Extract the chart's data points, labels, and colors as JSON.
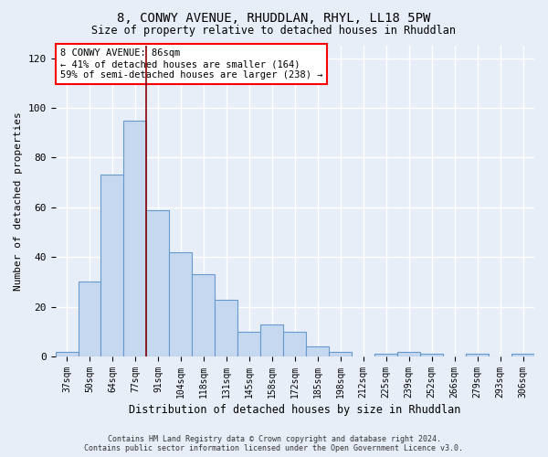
{
  "title1": "8, CONWY AVENUE, RHUDDLAN, RHYL, LL18 5PW",
  "title2": "Size of property relative to detached houses in Rhuddlan",
  "xlabel": "Distribution of detached houses by size in Rhuddlan",
  "ylabel": "Number of detached properties",
  "categories": [
    "37sqm",
    "50sqm",
    "64sqm",
    "77sqm",
    "91sqm",
    "104sqm",
    "118sqm",
    "131sqm",
    "145sqm",
    "158sqm",
    "172sqm",
    "185sqm",
    "198sqm",
    "212sqm",
    "225sqm",
    "239sqm",
    "252sqm",
    "266sqm",
    "279sqm",
    "293sqm",
    "306sqm"
  ],
  "values": [
    2,
    30,
    73,
    95,
    59,
    42,
    33,
    23,
    10,
    13,
    10,
    4,
    2,
    0,
    1,
    2,
    1,
    0,
    1,
    0,
    1
  ],
  "bar_color": "#c5d8f0",
  "bar_edge_color": "#6699cc",
  "annotation_text": "8 CONWY AVENUE: 86sqm\n← 41% of detached houses are smaller (164)\n59% of semi-detached houses are larger (238) →",
  "annotation_box_color": "white",
  "annotation_box_edge_color": "red",
  "vline_color": "#8b0000",
  "ylim": [
    0,
    125
  ],
  "yticks": [
    0,
    20,
    40,
    60,
    80,
    100,
    120
  ],
  "background_color": "#e8eef8",
  "grid_color": "white",
  "footer_line1": "Contains HM Land Registry data © Crown copyright and database right 2024.",
  "footer_line2": "Contains public sector information licensed under the Open Government Licence v3.0."
}
